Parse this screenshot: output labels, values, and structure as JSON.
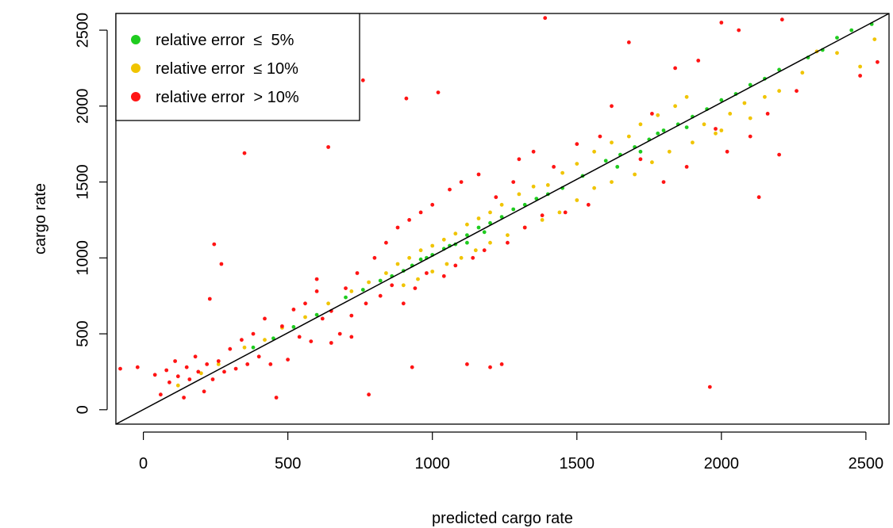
{
  "chart_data": {
    "type": "scatter",
    "title": "",
    "xlabel": "predicted cargo rate",
    "ylabel": "cargo rate",
    "xlim": [
      -95,
      2580
    ],
    "ylim": [
      -95,
      2610
    ],
    "xticks": [
      0,
      500,
      1000,
      1500,
      2000,
      2500
    ],
    "yticks": [
      0,
      500,
      1000,
      1500,
      2000,
      2500
    ],
    "grid": false,
    "legend_position": "top-left",
    "reference_line": {
      "from": [
        -95,
        -95
      ],
      "to": [
        2580,
        2610
      ],
      "label": "y = x"
    },
    "series": [
      {
        "name": "relative error  ≤  5%",
        "color": "#1fcc1f",
        "points": [
          [
            380,
            410
          ],
          [
            450,
            470
          ],
          [
            520,
            545
          ],
          [
            600,
            625
          ],
          [
            700,
            740
          ],
          [
            760,
            790
          ],
          [
            820,
            850
          ],
          [
            860,
            880
          ],
          [
            900,
            915
          ],
          [
            930,
            950
          ],
          [
            960,
            990
          ],
          [
            1000,
            1020
          ],
          [
            1040,
            1060
          ],
          [
            1080,
            1090
          ],
          [
            1120,
            1150
          ],
          [
            1160,
            1200
          ],
          [
            1200,
            1230
          ],
          [
            1240,
            1270
          ],
          [
            1280,
            1320
          ],
          [
            1320,
            1350
          ],
          [
            1360,
            1390
          ],
          [
            1400,
            1420
          ],
          [
            1450,
            1460
          ],
          [
            1520,
            1540
          ],
          [
            1600,
            1640
          ],
          [
            1650,
            1680
          ],
          [
            1700,
            1730
          ],
          [
            1750,
            1780
          ],
          [
            1800,
            1840
          ],
          [
            1850,
            1880
          ],
          [
            1900,
            1930
          ],
          [
            1950,
            1980
          ],
          [
            2000,
            2040
          ],
          [
            2050,
            2080
          ],
          [
            2100,
            2140
          ],
          [
            2150,
            2180
          ],
          [
            2200,
            2240
          ],
          [
            2300,
            2320
          ],
          [
            2350,
            2370
          ],
          [
            2400,
            2450
          ],
          [
            2450,
            2500
          ],
          [
            2520,
            2540
          ],
          [
            1640,
            1600
          ],
          [
            1720,
            1700
          ],
          [
            1780,
            1820
          ],
          [
            1880,
            1860
          ],
          [
            1120,
            1100
          ],
          [
            980,
            1000
          ],
          [
            1060,
            1080
          ],
          [
            1180,
            1170
          ]
        ]
      },
      {
        "name": "relative error  ≤ 10%",
        "color": "#f0c400",
        "points": [
          [
            120,
            160
          ],
          [
            200,
            240
          ],
          [
            260,
            300
          ],
          [
            350,
            410
          ],
          [
            420,
            460
          ],
          [
            480,
            540
          ],
          [
            560,
            610
          ],
          [
            640,
            700
          ],
          [
            720,
            780
          ],
          [
            780,
            840
          ],
          [
            840,
            900
          ],
          [
            880,
            960
          ],
          [
            920,
            1000
          ],
          [
            960,
            1050
          ],
          [
            1000,
            1080
          ],
          [
            1040,
            1120
          ],
          [
            1080,
            1160
          ],
          [
            1120,
            1220
          ],
          [
            1160,
            1260
          ],
          [
            1200,
            1300
          ],
          [
            1240,
            1350
          ],
          [
            1300,
            1420
          ],
          [
            1350,
            1470
          ],
          [
            1400,
            1480
          ],
          [
            1450,
            1560
          ],
          [
            1500,
            1620
          ],
          [
            1560,
            1700
          ],
          [
            1620,
            1760
          ],
          [
            1680,
            1800
          ],
          [
            1720,
            1880
          ],
          [
            1780,
            1940
          ],
          [
            1840,
            2000
          ],
          [
            1880,
            2060
          ],
          [
            1940,
            1880
          ],
          [
            1980,
            1820
          ],
          [
            2030,
            1950
          ],
          [
            2080,
            2020
          ],
          [
            2150,
            2060
          ],
          [
            2200,
            2100
          ],
          [
            2280,
            2220
          ],
          [
            2330,
            2360
          ],
          [
            2400,
            2350
          ],
          [
            2480,
            2260
          ],
          [
            2530,
            2440
          ],
          [
            900,
            820
          ],
          [
            950,
            860
          ],
          [
            1000,
            910
          ],
          [
            1050,
            960
          ],
          [
            1100,
            1000
          ],
          [
            1150,
            1050
          ],
          [
            1200,
            1100
          ],
          [
            1260,
            1150
          ],
          [
            1320,
            1200
          ],
          [
            1380,
            1250
          ],
          [
            1440,
            1300
          ],
          [
            1500,
            1380
          ],
          [
            1560,
            1460
          ],
          [
            1620,
            1500
          ],
          [
            1700,
            1550
          ],
          [
            1760,
            1630
          ],
          [
            1820,
            1700
          ],
          [
            1900,
            1760
          ],
          [
            2000,
            1840
          ],
          [
            2100,
            1920
          ]
        ]
      },
      {
        "name": "relative error  > 10%",
        "color": "#ff1414",
        "points": [
          [
            -80,
            270
          ],
          [
            -20,
            280
          ],
          [
            40,
            230
          ],
          [
            60,
            100
          ],
          [
            80,
            260
          ],
          [
            90,
            180
          ],
          [
            110,
            320
          ],
          [
            120,
            220
          ],
          [
            140,
            80
          ],
          [
            150,
            280
          ],
          [
            160,
            200
          ],
          [
            180,
            350
          ],
          [
            190,
            250
          ],
          [
            210,
            120
          ],
          [
            220,
            300
          ],
          [
            230,
            730
          ],
          [
            240,
            200
          ],
          [
            245,
            1090
          ],
          [
            260,
            320
          ],
          [
            270,
            960
          ],
          [
            280,
            250
          ],
          [
            300,
            400
          ],
          [
            320,
            270
          ],
          [
            340,
            460
          ],
          [
            350,
            1690
          ],
          [
            360,
            300
          ],
          [
            380,
            500
          ],
          [
            400,
            350
          ],
          [
            420,
            600
          ],
          [
            440,
            300
          ],
          [
            460,
            80
          ],
          [
            480,
            550
          ],
          [
            500,
            330
          ],
          [
            520,
            660
          ],
          [
            540,
            480
          ],
          [
            560,
            700
          ],
          [
            580,
            450
          ],
          [
            600,
            780
          ],
          [
            620,
            600
          ],
          [
            640,
            1730
          ],
          [
            650,
            650
          ],
          [
            680,
            500
          ],
          [
            700,
            800
          ],
          [
            720,
            620
          ],
          [
            740,
            900
          ],
          [
            760,
            2170
          ],
          [
            770,
            700
          ],
          [
            800,
            1000
          ],
          [
            820,
            750
          ],
          [
            840,
            1100
          ],
          [
            860,
            820
          ],
          [
            880,
            1200
          ],
          [
            900,
            700
          ],
          [
            910,
            2050
          ],
          [
            920,
            1250
          ],
          [
            930,
            280
          ],
          [
            940,
            800
          ],
          [
            960,
            1300
          ],
          [
            980,
            900
          ],
          [
            1000,
            1350
          ],
          [
            1020,
            2090
          ],
          [
            1040,
            880
          ],
          [
            1060,
            1450
          ],
          [
            1080,
            950
          ],
          [
            1100,
            1500
          ],
          [
            1120,
            300
          ],
          [
            1140,
            1000
          ],
          [
            1160,
            1550
          ],
          [
            1180,
            1050
          ],
          [
            1200,
            280
          ],
          [
            1220,
            1400
          ],
          [
            1240,
            300
          ],
          [
            1260,
            1100
          ],
          [
            1280,
            1500
          ],
          [
            1300,
            1650
          ],
          [
            1320,
            1200
          ],
          [
            1350,
            1700
          ],
          [
            1380,
            1280
          ],
          [
            1390,
            2580
          ],
          [
            1420,
            1600
          ],
          [
            1460,
            1300
          ],
          [
            1500,
            1750
          ],
          [
            1540,
            1350
          ],
          [
            1580,
            1800
          ],
          [
            1620,
            2000
          ],
          [
            1680,
            2420
          ],
          [
            1720,
            1650
          ],
          [
            1760,
            1950
          ],
          [
            1800,
            1500
          ],
          [
            1840,
            2250
          ],
          [
            1880,
            1600
          ],
          [
            1920,
            2300
          ],
          [
            1960,
            150
          ],
          [
            1980,
            1850
          ],
          [
            2000,
            2550
          ],
          [
            2020,
            1700
          ],
          [
            2060,
            2500
          ],
          [
            2100,
            1800
          ],
          [
            2130,
            1400
          ],
          [
            2160,
            1950
          ],
          [
            2200,
            1680
          ],
          [
            2210,
            2570
          ],
          [
            2260,
            2100
          ],
          [
            2480,
            2200
          ],
          [
            2540,
            2290
          ],
          [
            780,
            100
          ],
          [
            720,
            480
          ],
          [
            650,
            440
          ],
          [
            600,
            860
          ]
        ]
      }
    ]
  }
}
